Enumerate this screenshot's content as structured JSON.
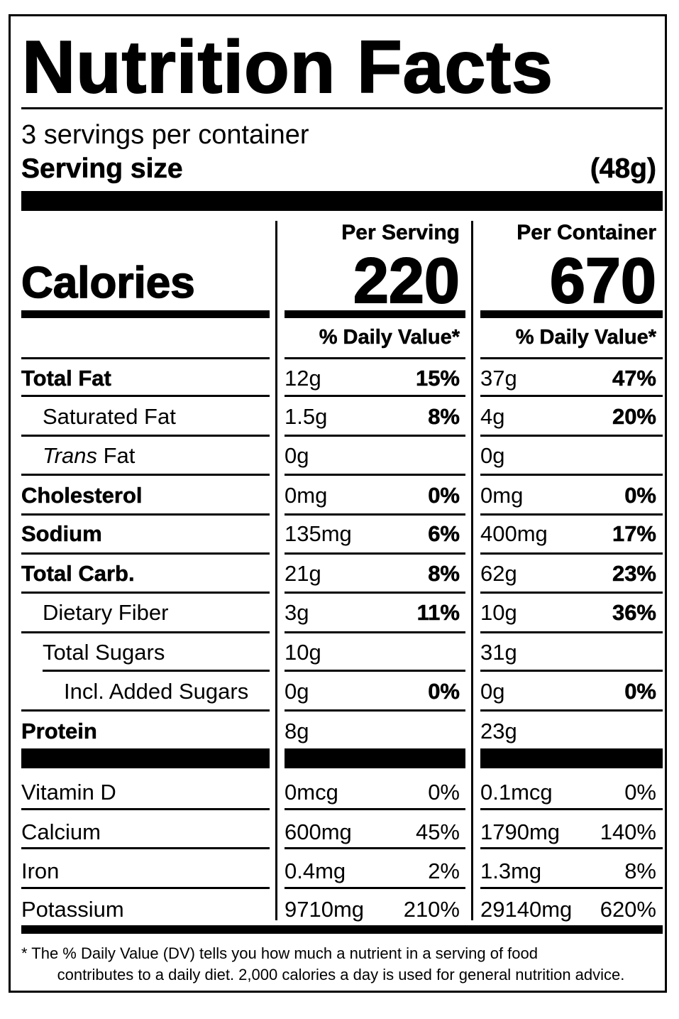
{
  "label": {
    "title": "Nutrition Facts",
    "servings_per_container": "3 servings per container",
    "serving_size_label": "Serving size",
    "serving_size_value": "(48g)",
    "columns": {
      "per_serving": "Per Serving",
      "per_container": "Per Container"
    },
    "calories": {
      "label": "Calories",
      "per_serving": "220",
      "per_container": "670"
    },
    "daily_value_header": "% Daily Value*",
    "nutrients": [
      {
        "name": "Total Fat",
        "bold": true,
        "indent": 0,
        "serving_amount": "12g",
        "serving_dv": "15%",
        "container_amount": "37g",
        "container_dv": "47%"
      },
      {
        "name": "Saturated Fat",
        "bold": false,
        "indent": 1,
        "serving_amount": "1.5g",
        "serving_dv": "8%",
        "container_amount": "4g",
        "container_dv": "20%"
      },
      {
        "name_italic": "Trans",
        "name": " Fat",
        "bold": false,
        "indent": 1,
        "serving_amount": "0g",
        "serving_dv": "",
        "container_amount": "0g",
        "container_dv": ""
      },
      {
        "name": "Cholesterol",
        "bold": true,
        "indent": 0,
        "serving_amount": "0mg",
        "serving_dv": "0%",
        "container_amount": "0mg",
        "container_dv": "0%"
      },
      {
        "name": "Sodium",
        "bold": true,
        "indent": 0,
        "serving_amount": "135mg",
        "serving_dv": "6%",
        "container_amount": "400mg",
        "container_dv": "17%"
      },
      {
        "name": "Total Carb.",
        "bold": true,
        "indent": 0,
        "serving_amount": "21g",
        "serving_dv": "8%",
        "container_amount": "62g",
        "container_dv": "23%"
      },
      {
        "name": "Dietary Fiber",
        "bold": false,
        "indent": 1,
        "serving_amount": "3g",
        "serving_dv": "11%",
        "container_amount": "10g",
        "container_dv": "36%"
      },
      {
        "name": "Total Sugars",
        "bold": false,
        "indent": 1,
        "serving_amount": "10g",
        "serving_dv": "",
        "container_amount": "31g",
        "container_dv": ""
      },
      {
        "name": "Incl. Added Sugars",
        "bold": false,
        "indent": 2,
        "serving_amount": "0g",
        "serving_dv": "0%",
        "container_amount": "0g",
        "container_dv": "0%"
      },
      {
        "name": "Protein",
        "bold": true,
        "indent": 0,
        "serving_amount": "8g",
        "serving_dv": "",
        "container_amount": "23g",
        "container_dv": ""
      }
    ],
    "vitamins": [
      {
        "name": "Vitamin D",
        "serving_amount": "0mcg",
        "serving_dv": "0%",
        "container_amount": "0.1mcg",
        "container_dv": "0%"
      },
      {
        "name": "Calcium",
        "serving_amount": "600mg",
        "serving_dv": "45%",
        "container_amount": "1790mg",
        "container_dv": "140%"
      },
      {
        "name": "Iron",
        "serving_amount": "0.4mg",
        "serving_dv": "2%",
        "container_amount": "1.3mg",
        "container_dv": "8%"
      },
      {
        "name": "Potassium",
        "serving_amount": "9710mg",
        "serving_dv": "210%",
        "container_amount": "29140mg",
        "container_dv": "620%"
      }
    ],
    "footnote": {
      "line1": "* The % Daily Value (DV) tells you how much a nutrient in a serving of food",
      "line2": "contributes to a daily diet. 2,000 calories a day is used for general nutrition advice."
    }
  }
}
